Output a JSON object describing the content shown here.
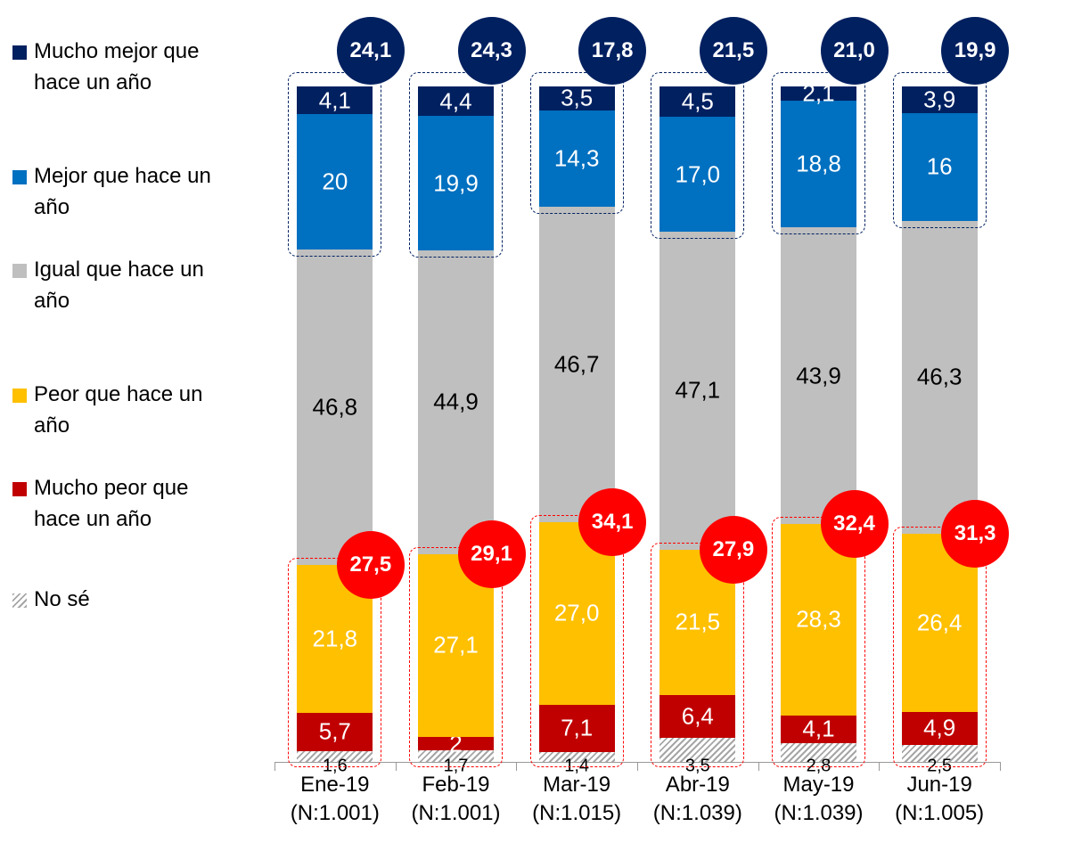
{
  "chart_data": {
    "type": "stacked-bar",
    "categories": [
      "Ene-19\n(N:1.001)",
      "Feb-19\n(N:1.001)",
      "Mar-19\n(N:1.015)",
      "Abr-19\n(N:1.039)",
      "May-19\n(N:1.039)",
      "Jun-19\n(N:1.005)"
    ],
    "ylim": [
      0,
      100
    ],
    "legend": "left",
    "series": [
      {
        "name": "No sé",
        "color": "#a6a6a6",
        "hatch": true,
        "label_color": "#000000",
        "values": [
          1.6,
          1.7,
          1.4,
          3.5,
          2.8,
          2.5
        ],
        "value_labels": [
          "1,6",
          "1,7",
          "1,4",
          "3,5",
          "2,8",
          "2,5"
        ]
      },
      {
        "name": "Mucho peor que hace un año",
        "color": "#c00000",
        "label_color": "#ffffff",
        "values": [
          5.7,
          2,
          7.1,
          6.4,
          4.1,
          4.9
        ],
        "value_labels": [
          "5,7",
          "2",
          "7,1",
          "6,4",
          "4,1",
          "4,9"
        ]
      },
      {
        "name": "Peor que hace un año",
        "color": "#ffc000",
        "label_color": "#ffffff",
        "values": [
          21.8,
          27.1,
          27.0,
          21.5,
          28.3,
          26.4
        ],
        "value_labels": [
          "21,8",
          "27,1",
          "27,0",
          "21,5",
          "28,3",
          "26,4"
        ]
      },
      {
        "name": "Igual que hace un año",
        "color": "#bfbfbf",
        "label_color": "#000000",
        "values": [
          46.8,
          44.9,
          46.7,
          47.1,
          43.9,
          46.3
        ],
        "value_labels": [
          "46,8",
          "44,9",
          "46,7",
          "47,1",
          "43,9",
          "46,3"
        ]
      },
      {
        "name": "Mejor que hace un año",
        "color": "#0070c0",
        "label_color": "#ffffff",
        "values": [
          20,
          19.9,
          14.3,
          17.0,
          18.8,
          16
        ],
        "value_labels": [
          "20",
          "19,9",
          "14,3",
          "17,0",
          "18,8",
          "16"
        ]
      },
      {
        "name": "Mucho mejor que hace un año",
        "color": "#002060",
        "label_color": "#ffffff",
        "values": [
          4.1,
          4.4,
          3.5,
          4.5,
          2.1,
          3.9
        ],
        "value_labels": [
          "4,1",
          "4,4",
          "3,5",
          "4,5",
          "2,1",
          "3,9"
        ]
      }
    ],
    "negative_totals": {
      "color": "#ff0000",
      "values": [
        27.5,
        29.1,
        34.1,
        27.9,
        32.4,
        31.3
      ],
      "value_labels": [
        "27,5",
        "29,1",
        "34,1",
        "27,9",
        "32,4",
        "31,3"
      ]
    },
    "positive_totals": {
      "color": "#002060",
      "values": [
        24.1,
        24.3,
        17.8,
        21.5,
        21.0,
        19.9
      ],
      "value_labels": [
        "24,1",
        "24,3",
        "17,8",
        "21,5",
        "21,0",
        "19,9"
      ]
    }
  }
}
